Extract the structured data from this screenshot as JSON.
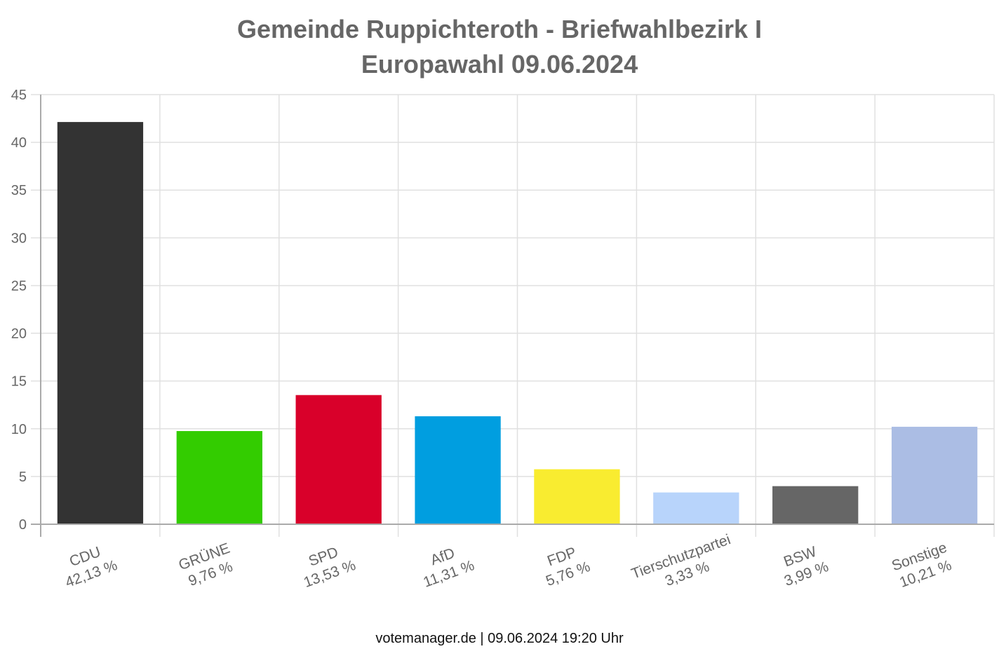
{
  "chart_data": {
    "type": "bar",
    "title": [
      "Gemeinde Ruppichteroth - Briefwahlbezirk I",
      "Europawahl 09.06.2024"
    ],
    "categories": [
      "CDU",
      "GRÜNE",
      "SPD",
      "AfD",
      "FDP",
      "Tierschutzpartei",
      "BSW",
      "Sonstige"
    ],
    "values": [
      42.13,
      9.76,
      13.53,
      11.31,
      5.76,
      3.33,
      3.99,
      10.21
    ],
    "value_labels": [
      "42,13 %",
      "9,76 %",
      "13,53 %",
      "11,31 %",
      "5,76 %",
      "3,33 %",
      "3,99 %",
      "10,21 %"
    ],
    "colors": [
      "#333333",
      "#33cc00",
      "#d9002a",
      "#009ee0",
      "#f9ec30",
      "#b8d4fb",
      "#666666",
      "#abbde4"
    ],
    "ylim": [
      0,
      45
    ],
    "yticks": [
      0,
      5,
      10,
      15,
      20,
      25,
      30,
      35,
      40,
      45
    ],
    "grid": true,
    "xlabel": "",
    "ylabel": ""
  },
  "footer": "votemanager.de | 09.06.2024 19:20 Uhr"
}
